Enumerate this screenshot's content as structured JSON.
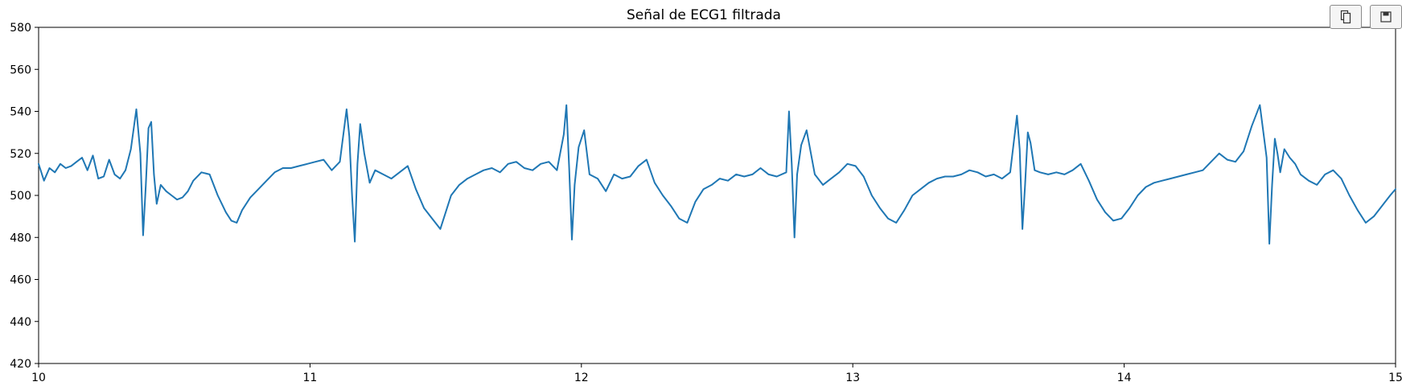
{
  "toolbar": {
    "copy_icon": "copy-icon",
    "save_icon": "floppy-disk-icon"
  },
  "chart_data": {
    "type": "line",
    "title": "Señal de ECG1 filtrada",
    "xlabel": "",
    "ylabel": "",
    "xlim": [
      10,
      15
    ],
    "ylim": [
      420,
      580
    ],
    "xticks": [
      10,
      11,
      12,
      13,
      14,
      15
    ],
    "yticks": [
      420,
      440,
      460,
      480,
      500,
      520,
      540,
      560,
      580
    ],
    "grid": false,
    "line_color": "#1f77b4",
    "series": [
      {
        "x": [
          10.0,
          10.02,
          10.04,
          10.06,
          10.08,
          10.1,
          10.12,
          10.14,
          10.16,
          10.18,
          10.2,
          10.22,
          10.24,
          10.26,
          10.28,
          10.3,
          10.32,
          10.34,
          10.36,
          10.375,
          10.385,
          10.395,
          10.405,
          10.415,
          10.425,
          10.435,
          10.45,
          10.47,
          10.49,
          10.51,
          10.53,
          10.55,
          10.57,
          10.6,
          10.63,
          10.66,
          10.69,
          10.71,
          10.73,
          10.75,
          10.78,
          10.81,
          10.84,
          10.87,
          10.9,
          10.93,
          10.96,
          10.99,
          11.02,
          11.05,
          11.08,
          11.11,
          11.135,
          11.145,
          11.155,
          11.165,
          11.175,
          11.185,
          11.2,
          11.22,
          11.24,
          11.27,
          11.3,
          11.33,
          11.36,
          11.39,
          11.42,
          11.45,
          11.48,
          11.5,
          11.52,
          11.55,
          11.58,
          11.61,
          11.64,
          11.67,
          11.7,
          11.73,
          11.76,
          11.79,
          11.82,
          11.85,
          11.88,
          11.91,
          11.935,
          11.945,
          11.955,
          11.965,
          11.975,
          11.99,
          12.01,
          12.03,
          12.06,
          12.09,
          12.12,
          12.15,
          12.18,
          12.21,
          12.24,
          12.27,
          12.3,
          12.33,
          12.36,
          12.39,
          12.42,
          12.45,
          12.48,
          12.51,
          12.54,
          12.57,
          12.6,
          12.63,
          12.66,
          12.69,
          12.72,
          12.755,
          12.765,
          12.775,
          12.785,
          12.795,
          12.81,
          12.83,
          12.86,
          12.89,
          12.92,
          12.95,
          12.98,
          13.01,
          13.04,
          13.07,
          13.1,
          13.13,
          13.16,
          13.19,
          13.22,
          13.25,
          13.28,
          13.31,
          13.34,
          13.37,
          13.4,
          13.43,
          13.46,
          13.49,
          13.52,
          13.55,
          13.58,
          13.605,
          13.615,
          13.625,
          13.635,
          13.645,
          13.655,
          13.67,
          13.69,
          13.72,
          13.75,
          13.78,
          13.81,
          13.84,
          13.87,
          13.9,
          13.93,
          13.96,
          13.99,
          14.02,
          14.05,
          14.08,
          14.11,
          14.14,
          14.17,
          14.2,
          14.23,
          14.26,
          14.29,
          14.32,
          14.35,
          14.38,
          14.41,
          14.44,
          14.47,
          14.5,
          14.525,
          14.535,
          14.545,
          14.555,
          14.565,
          14.575,
          14.59,
          14.61,
          14.63,
          14.65,
          14.68,
          14.71,
          14.74,
          14.77,
          14.8,
          14.83,
          14.86,
          14.89,
          14.92,
          14.95,
          14.98,
          15.0
        ],
        "y": [
          515,
          507,
          513,
          511,
          515,
          513,
          514,
          516,
          518,
          512,
          519,
          508,
          509,
          517,
          510,
          508,
          512,
          522,
          541,
          520,
          481,
          505,
          532,
          535,
          510,
          496,
          505,
          502,
          500,
          498,
          499,
          502,
          507,
          511,
          510,
          500,
          492,
          488,
          487,
          493,
          499,
          503,
          507,
          511,
          513,
          513,
          514,
          515,
          516,
          517,
          512,
          516,
          541,
          528,
          500,
          478,
          515,
          534,
          520,
          506,
          512,
          510,
          508,
          511,
          514,
          503,
          494,
          489,
          484,
          492,
          500,
          505,
          508,
          510,
          512,
          513,
          511,
          515,
          516,
          513,
          512,
          515,
          516,
          512,
          529,
          543,
          513,
          479,
          505,
          523,
          531,
          510,
          508,
          502,
          510,
          508,
          509,
          514,
          517,
          506,
          500,
          495,
          489,
          487,
          497,
          503,
          505,
          508,
          507,
          510,
          509,
          510,
          513,
          510,
          509,
          511,
          540,
          515,
          480,
          510,
          524,
          531,
          510,
          505,
          508,
          511,
          515,
          514,
          509,
          500,
          494,
          489,
          487,
          493,
          500,
          503,
          506,
          508,
          509,
          509,
          510,
          512,
          511,
          509,
          510,
          508,
          511,
          538,
          522,
          484,
          505,
          530,
          525,
          512,
          511,
          510,
          511,
          510,
          512,
          515,
          507,
          498,
          492,
          488,
          489,
          494,
          500,
          504,
          506,
          507,
          508,
          509,
          510,
          511,
          512,
          516,
          520,
          517,
          516,
          521,
          533,
          543,
          518,
          477,
          505,
          527,
          520,
          511,
          522,
          518,
          515,
          510,
          507,
          505,
          510,
          512,
          508,
          500,
          493,
          487,
          490,
          495,
          500,
          503
        ]
      }
    ]
  }
}
